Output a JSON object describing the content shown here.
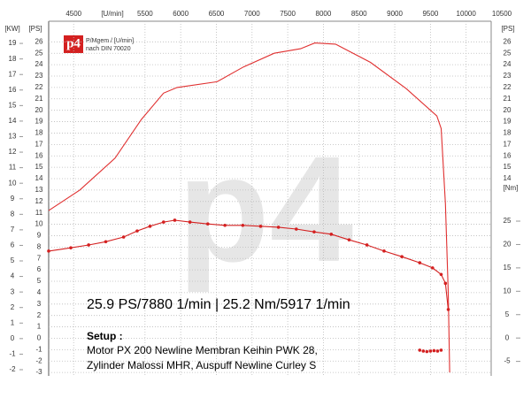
{
  "chart_data": {
    "type": "line",
    "logo": "p4",
    "logo_caption": "P/Mgem / [U/min]",
    "logo_norm": "nach DIN 70020",
    "watermark": "p4",
    "x_label": "[U/min]",
    "y_label": "[PS]",
    "y2_label": "[Nm]",
    "kw_label": "[KW]",
    "xlim": [
      4150,
      10500
    ],
    "xticks": [
      4500,
      5500,
      6000,
      6500,
      7000,
      7500,
      8000,
      8500,
      9000,
      9500,
      10000,
      10500
    ],
    "ylim": [
      -3.3,
      27.5
    ],
    "yticks": [
      -3,
      -2,
      -1,
      0,
      1,
      2,
      3,
      4,
      5,
      6,
      7,
      8,
      9,
      10,
      11,
      12,
      13,
      14,
      15,
      16,
      17,
      18,
      19,
      20,
      21,
      22,
      23,
      24,
      25,
      26
    ],
    "y2lim": [
      -8.1,
      67
    ],
    "y2ticks": [
      -5,
      0,
      5,
      10,
      15,
      20,
      25
    ],
    "kwlim": [
      -2.4,
      20.2
    ],
    "kwticks": [
      -2,
      -1,
      0,
      1,
      2,
      3,
      4,
      5,
      6,
      7,
      8,
      9,
      10,
      11,
      12,
      13,
      14,
      15,
      16,
      17,
      18,
      19
    ],
    "grid": true,
    "series": [
      {
        "color": "#e03030",
        "markers": false,
        "x": [
          4150,
          4585,
          5080,
          5450,
          5760,
          5950,
          6510,
          6880,
          7310,
          7680,
          7880,
          8170,
          8660,
          9160,
          9590,
          9650,
          9710,
          9750,
          9770
        ],
        "values": [
          11.2,
          13.0,
          15.8,
          19.2,
          21.5,
          22.0,
          22.5,
          23.8,
          25.0,
          25.4,
          25.9,
          25.8,
          24.2,
          21.9,
          19.5,
          18.4,
          11.8,
          4.0,
          -3.0
        ]
      },
      {
        "color": "#d42020",
        "axis": "y2",
        "markers": true,
        "x": [
          4150,
          4460,
          4710,
          4950,
          5200,
          5390,
          5570,
          5760,
          5917,
          6130,
          6380,
          6620,
          6870,
          7120,
          7370,
          7620,
          7870,
          8110,
          8360,
          8610,
          8850,
          9100,
          9350,
          9530,
          9650,
          9710,
          9750
        ],
        "values": [
          18.6,
          19.3,
          19.9,
          20.6,
          21.6,
          22.9,
          23.9,
          24.8,
          25.2,
          24.8,
          24.4,
          24.1,
          24.1,
          23.9,
          23.7,
          23.3,
          22.7,
          22.2,
          21.0,
          19.9,
          18.6,
          17.4,
          16.1,
          15.0,
          13.6,
          11.7,
          6.1
        ]
      },
      {
        "color": "#d42020",
        "axis": "y2",
        "markers": true,
        "x": [
          9350,
          9400,
          9450,
          9500,
          9550,
          9600,
          9650
        ],
        "values": [
          -2.6,
          -2.8,
          -2.9,
          -2.8,
          -2.7,
          -2.8,
          -2.6
        ]
      }
    ],
    "annotations": [
      "25.9 PS/7880 1/min | 25.2 Nm/5917 1/min",
      "Setup :",
      "Motor PX 200 Newline Membran Keihin PWK 28,",
      "Zylinder Malossi MHR, Auspuff Newline Curley S"
    ]
  }
}
